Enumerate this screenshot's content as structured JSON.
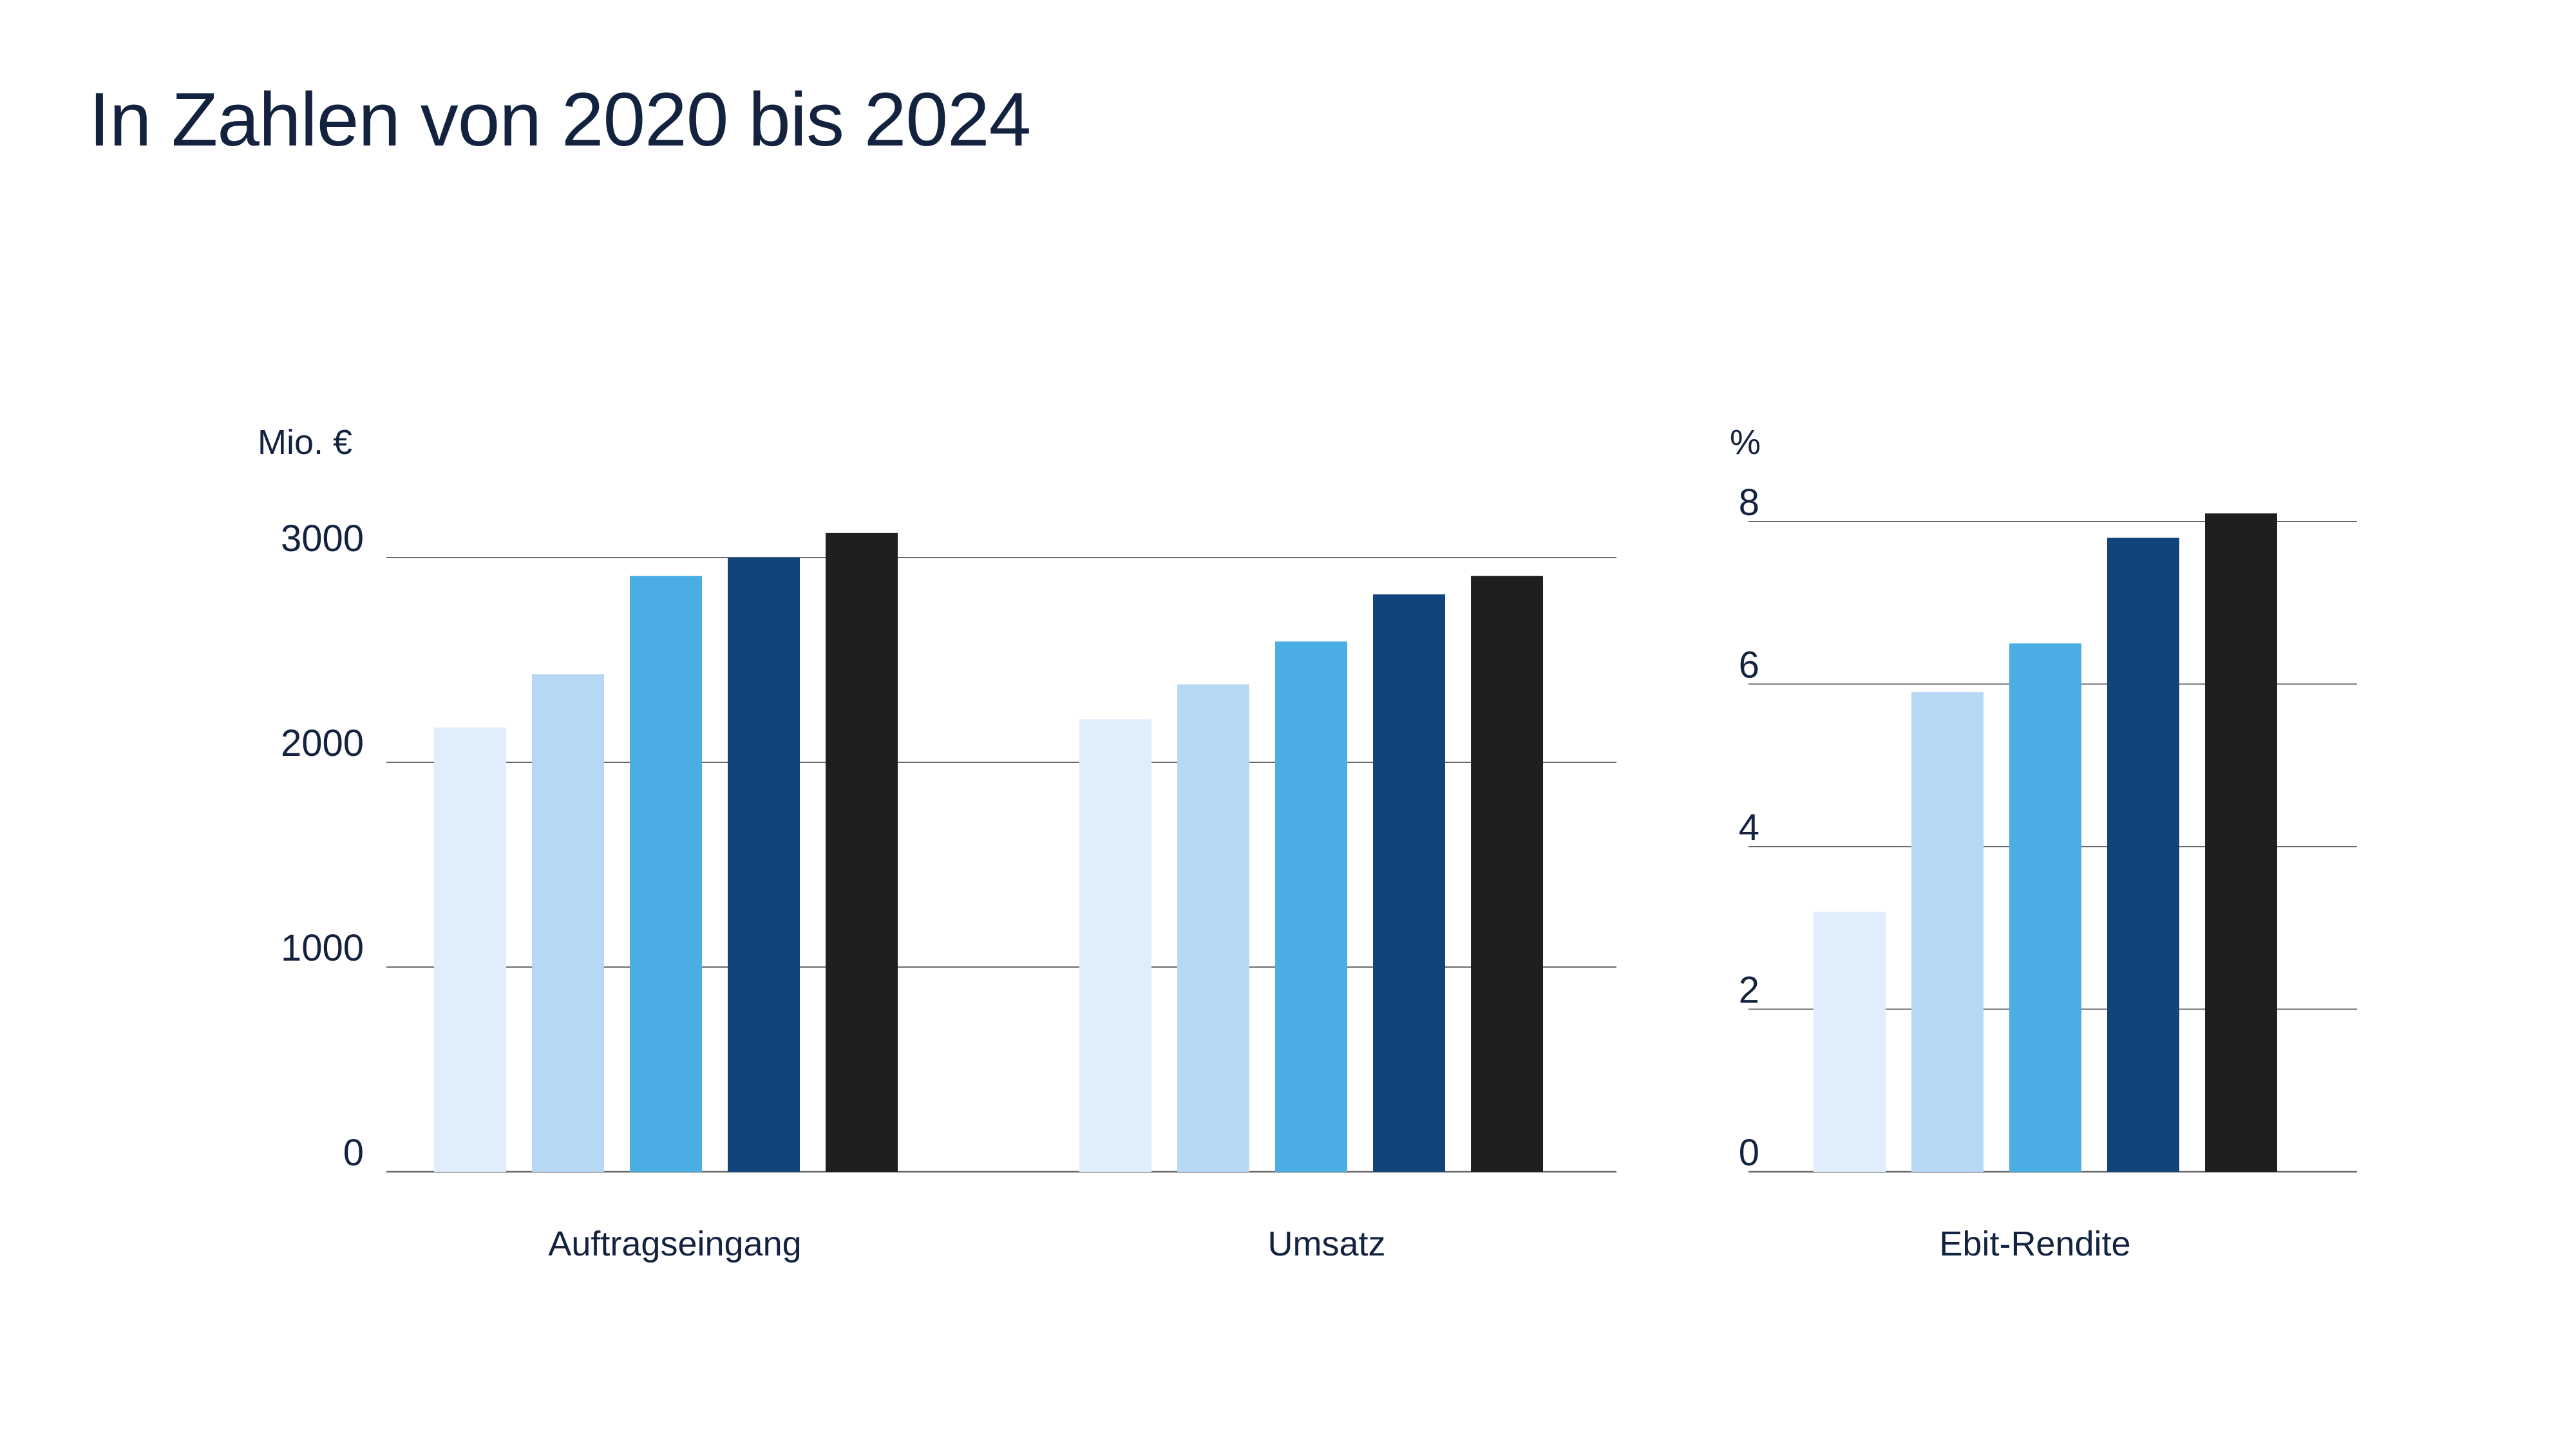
{
  "page": {
    "title": "In Zahlen von 2020 bis 2024"
  },
  "colors": {
    "years": [
      "#e0edfa",
      "#b6d8f4",
      "#4aaee4",
      "#12447c",
      "#1f1f1f"
    ],
    "gridline": "#6b6b6b",
    "text": "#13233f"
  },
  "chart_data": [
    {
      "type": "bar",
      "unit": "Mio. €",
      "categories": [
        "Auftragseingang",
        "Umsatz"
      ],
      "series": [
        {
          "values": [
            2170,
            2210
          ]
        },
        {
          "values": [
            2430,
            2380
          ]
        },
        {
          "values": [
            2910,
            2590
          ]
        },
        {
          "values": [
            3000,
            2820
          ]
        },
        {
          "values": [
            3120,
            2910
          ]
        }
      ],
      "ylim": [
        0,
        3000
      ],
      "yticks": [
        "0",
        "1000",
        "2000",
        "3000"
      ],
      "grid": true
    },
    {
      "type": "bar",
      "unit": "%",
      "categories": [
        "Ebit-Rendite"
      ],
      "series": [
        {
          "values": [
            3.2
          ]
        },
        {
          "values": [
            5.9
          ]
        },
        {
          "values": [
            6.5
          ]
        },
        {
          "values": [
            7.8
          ]
        },
        {
          "values": [
            8.1
          ]
        }
      ],
      "ylim": [
        0,
        8
      ],
      "yticks": [
        "0",
        "2",
        "4",
        "6",
        "8"
      ],
      "grid": true
    }
  ]
}
